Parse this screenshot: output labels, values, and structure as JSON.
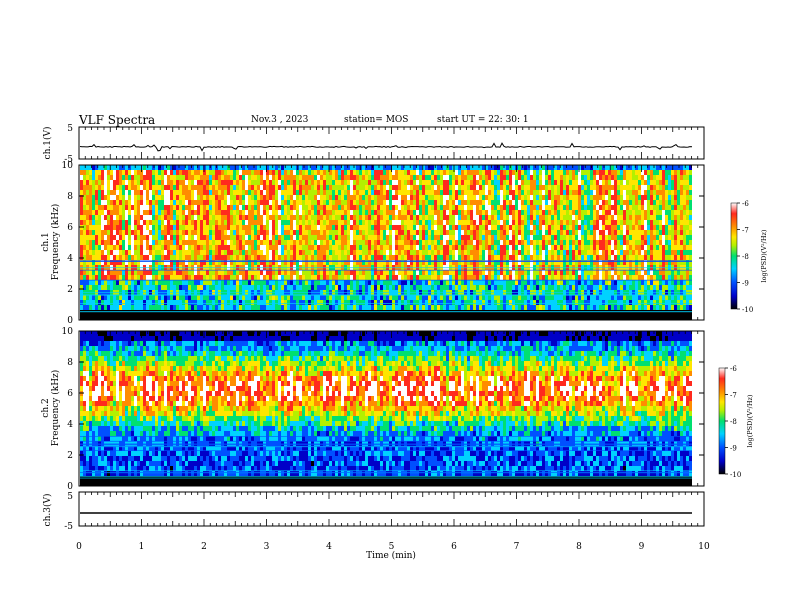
{
  "header": {
    "title": "VLF Spectra",
    "date": "Nov.3 , 2023",
    "station": "station= MOS",
    "start": "start UT = 22: 30: 1"
  },
  "colors": {
    "spectrum": [
      "#000000",
      "#0000c8",
      "#0050ff",
      "#00d2ff",
      "#00e070",
      "#b4f000",
      "#ffe600",
      "#ff8c00",
      "#ff2a1e",
      "#ffffff"
    ],
    "trace": "#000000"
  },
  "chart_data": [
    {
      "type": "line",
      "panel": "ch1-voltage",
      "ylabel": "ch.1(V)",
      "ylim": [
        -5,
        5
      ],
      "yticks": [
        "5",
        "-5"
      ],
      "series": [
        {
          "values_level": -1.2,
          "noise": "small spikes"
        }
      ]
    },
    {
      "type": "heatmap",
      "panel": "ch1-spectrogram",
      "ylabel": "ch.1\nFrequency (kHz)",
      "ylim": [
        0,
        10
      ],
      "yticks": [
        "0",
        "2",
        "4",
        "6",
        "8",
        "10"
      ],
      "xlim": [
        0,
        10
      ],
      "colorbar": {
        "label": "log(PSD)(V²/Hz)",
        "range": [
          -10,
          -6
        ],
        "ticks": [
          "-6",
          "-7",
          "-8",
          "-9",
          "-10"
        ]
      },
      "description_band": "broadband impulses 0-10 kHz, strongest 4-9 kHz, weak horizontal bands below 4 kHz"
    },
    {
      "type": "heatmap",
      "panel": "ch2-spectrogram",
      "ylabel": "ch.2\nFrequency (kHz)",
      "ylim": [
        0,
        10
      ],
      "yticks": [
        "0",
        "2",
        "4",
        "6",
        "8",
        "10"
      ],
      "xlim": [
        0,
        10
      ],
      "colorbar": {
        "label": "log(PSD)(V²/Hz)",
        "range": [
          -10,
          -6
        ],
        "ticks": [
          "-6",
          "-7",
          "-8",
          "-9",
          "-10"
        ]
      },
      "description_band": "intense emission 4-9 kHz, weak below 3 kHz"
    },
    {
      "type": "line",
      "panel": "ch3-voltage",
      "ylabel": "ch.3(V)",
      "ylim": [
        -5,
        5
      ],
      "yticks": [
        "5",
        "-5"
      ],
      "series": [
        {
          "values_level": -1.8
        }
      ]
    }
  ],
  "xaxis": {
    "label": "Time (min)",
    "ticks": [
      "0",
      "1",
      "2",
      "3",
      "4",
      "5",
      "6",
      "7",
      "8",
      "9",
      "10"
    ],
    "range": [
      0,
      10
    ]
  }
}
